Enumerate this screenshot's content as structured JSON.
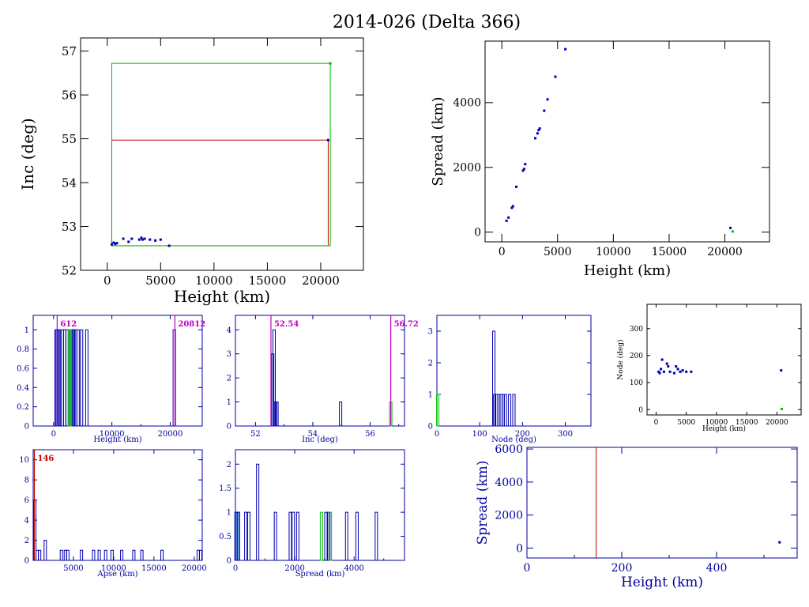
{
  "title": "2014-026 (Delta 366)",
  "colors": {
    "blue": "#0000b0",
    "red": "#c00000",
    "green": "#00c000",
    "magenta": "#c000c0",
    "frame": "#000000",
    "axis_blue": "#0000a0",
    "cyan": "#7fc8e8"
  },
  "chart_data": [
    {
      "id": "inc_vs_height",
      "type": "scatter",
      "xlabel": "Height (km)",
      "ylabel": "Inc (deg)",
      "xlim": [
        -2500,
        24000
      ],
      "ylim": [
        52,
        57.3
      ],
      "xticks": [
        0,
        5000,
        10000,
        15000,
        20000
      ],
      "yticks": [
        52,
        53,
        54,
        55,
        56,
        57
      ],
      "series": [
        {
          "color": "blue",
          "points": [
            [
              420,
              52.59
            ],
            [
              600,
              52.63
            ],
            [
              750,
              52.6
            ],
            [
              900,
              52.62
            ],
            [
              1500,
              52.72
            ],
            [
              2000,
              52.65
            ],
            [
              2300,
              52.72
            ],
            [
              3000,
              52.7
            ],
            [
              3200,
              52.74
            ],
            [
              3300,
              52.7
            ],
            [
              3500,
              52.72
            ],
            [
              4000,
              52.7
            ],
            [
              4500,
              52.68
            ],
            [
              5000,
              52.7
            ],
            [
              5800,
              52.56
            ],
            [
              20700,
              54.97
            ]
          ]
        },
        {
          "color": "green",
          "points": [
            [
              20900,
              56.72
            ]
          ]
        }
      ],
      "boxes": [
        {
          "color": "red",
          "x": [
            420,
            20700
          ],
          "y": [
            52.56,
            54.97
          ]
        },
        {
          "color": "green",
          "x": [
            420,
            20900
          ],
          "y": [
            52.56,
            56.72
          ]
        }
      ]
    },
    {
      "id": "spread_vs_height",
      "type": "scatter",
      "xlabel": "Height (km)",
      "ylabel": "Spread (km)",
      "xlim": [
        -1500,
        24000
      ],
      "ylim": [
        -300,
        5900
      ],
      "xticks": [
        0,
        5000,
        10000,
        15000,
        20000
      ],
      "yticks": [
        0,
        2000,
        4000
      ],
      "series": [
        {
          "color": "blue",
          "points": [
            [
              420,
              350
            ],
            [
              600,
              450
            ],
            [
              900,
              750
            ],
            [
              1000,
              800
            ],
            [
              1300,
              1400
            ],
            [
              1900,
              1900
            ],
            [
              2000,
              1950
            ],
            [
              2100,
              2100
            ],
            [
              3000,
              2900
            ],
            [
              3200,
              3050
            ],
            [
              3300,
              3150
            ],
            [
              3400,
              3200
            ],
            [
              3800,
              3750
            ],
            [
              4100,
              4100
            ],
            [
              4800,
              4800
            ],
            [
              5700,
              5650
            ],
            [
              20500,
              130
            ]
          ]
        },
        {
          "color": "green",
          "points": [
            [
              20700,
              20
            ]
          ]
        }
      ]
    },
    {
      "id": "hist_height",
      "type": "histogram",
      "xlabel": "Height (km)",
      "xlim": [
        -3500,
        25500
      ],
      "ylim": [
        0,
        1.15
      ],
      "xticks": [
        0,
        10000,
        20000
      ],
      "xminor": [
        5000,
        15000
      ],
      "yticks": [
        0,
        0.2,
        0.4,
        0.6,
        0.8,
        1
      ],
      "bars": [
        {
          "color": "blue",
          "x": [
            420,
            600,
            800,
            1000,
            1500,
            1900,
            2300,
            3000,
            3300,
            3500,
            3800,
            4200,
            4800,
            5700,
            20700
          ],
          "h": 1
        },
        {
          "color": "green",
          "x": [
            2700,
            2900
          ],
          "h": 1
        }
      ],
      "markers": [
        {
          "color": "magenta",
          "x": 612,
          "label": "612"
        },
        {
          "color": "magenta",
          "x": 20812,
          "label": "20812"
        }
      ]
    },
    {
      "id": "hist_inc",
      "type": "histogram",
      "xlabel": "Inc (deg)",
      "xlim": [
        51.3,
        57.2
      ],
      "ylim": [
        0,
        4.6
      ],
      "xticks": [
        52,
        54,
        56
      ],
      "xminor": [
        53,
        55,
        57
      ],
      "yticks": [
        0,
        1,
        2,
        3,
        4
      ],
      "bars": [
        {
          "color": "blue",
          "x": [
            52.6,
            52.65,
            52.7,
            52.75,
            54.97
          ],
          "hv": [
            3,
            4,
            1,
            1,
            1
          ]
        },
        {
          "color": "green",
          "x": [
            56.72
          ],
          "hv": [
            1
          ]
        }
      ],
      "markers": [
        {
          "color": "magenta",
          "x": 52.54,
          "label": "52.54"
        },
        {
          "color": "magenta",
          "x": 56.72,
          "label": "56.72"
        }
      ]
    },
    {
      "id": "hist_node",
      "type": "histogram",
      "xlabel": "Node (deg)",
      "xlim": [
        0,
        360
      ],
      "ylim": [
        0,
        3.5
      ],
      "xticks": [
        0,
        100,
        200,
        300
      ],
      "yticks": [
        0,
        1,
        2,
        3
      ],
      "bars": [
        {
          "color": "blue",
          "x": [
            133,
            135,
            140,
            145,
            150,
            155,
            160,
            170,
            180
          ],
          "hv": [
            3,
            1,
            1,
            1,
            1,
            1,
            1,
            1,
            1
          ]
        },
        {
          "color": "green",
          "x": [
            2
          ],
          "hv": [
            1
          ]
        }
      ]
    },
    {
      "id": "node_vs_height",
      "type": "scatter",
      "xlabel": "Height (km)",
      "ylabel": "Node (deg)",
      "xlim": [
        -1500,
        24000
      ],
      "ylim": [
        -20,
        390
      ],
      "xticks": [
        0,
        5000,
        10000,
        15000,
        20000
      ],
      "yticks": [
        0,
        100,
        200,
        300
      ],
      "series": [
        {
          "color": "blue",
          "points": [
            [
              420,
              140
            ],
            [
              600,
              135
            ],
            [
              800,
              150
            ],
            [
              1000,
              185
            ],
            [
              1300,
              140
            ],
            [
              1800,
              170
            ],
            [
              2000,
              160
            ],
            [
              2300,
              140
            ],
            [
              3000,
              135
            ],
            [
              3300,
              160
            ],
            [
              3600,
              150
            ],
            [
              4000,
              140
            ],
            [
              4400,
              145
            ],
            [
              5000,
              140
            ],
            [
              5800,
              140
            ],
            [
              20700,
              145
            ]
          ]
        },
        {
          "color": "green",
          "points": [
            [
              20800,
              2
            ]
          ]
        }
      ]
    },
    {
      "id": "hist_apse",
      "type": "histogram",
      "xlabel": "Apse (km)",
      "xlim": [
        0,
        21000
      ],
      "ylim": [
        0,
        11
      ],
      "xticks": [
        5000,
        10000,
        15000,
        20000
      ],
      "yticks": [
        0,
        2,
        4,
        6,
        8,
        10
      ],
      "bars": [
        {
          "color": "blue",
          "x": [
            200,
            500,
            800,
            1500,
            3500,
            4000,
            4300,
            6000,
            7500,
            8200,
            9000,
            9800,
            11000,
            12500,
            13500,
            16000,
            20500,
            20800
          ],
          "hv": [
            6,
            1,
            1,
            2,
            1,
            1,
            1,
            1,
            1,
            1,
            1,
            1,
            1,
            1,
            1,
            1,
            1,
            1
          ]
        }
      ],
      "markers": [
        {
          "color": "red",
          "x": 146,
          "label": "146"
        }
      ]
    },
    {
      "id": "hist_spread",
      "type": "histogram",
      "xlabel": "Spread (km)",
      "xlim": [
        0,
        5700
      ],
      "ylim": [
        0,
        2.3
      ],
      "xticks": [
        0,
        2000,
        4000
      ],
      "xminor": [
        1000,
        3000,
        5000
      ],
      "yticks": [
        0,
        0.5,
        1,
        1.5,
        2
      ],
      "bars": [
        {
          "color": "blue",
          "x": [
            20,
            100,
            350,
            450,
            750,
            1350,
            1850,
            1950,
            2100,
            3050,
            3150,
            3750,
            4100,
            4750
          ],
          "hv": [
            1,
            1,
            1,
            1,
            2,
            1,
            1,
            1,
            1,
            1,
            1,
            1,
            1,
            1
          ]
        },
        {
          "color": "green",
          "x": [
            2900,
            3200
          ],
          "hv": [
            1,
            1
          ]
        }
      ],
      "filled": {
        "color": "cyan",
        "x": [
          0,
          130
        ],
        "h": 1
      }
    },
    {
      "id": "spread_vs_height_zoom",
      "type": "scatter",
      "xlabel": "Height (km)",
      "ylabel": "Spread (km)",
      "xlim": [
        0,
        570
      ],
      "ylim": [
        -600,
        6100
      ],
      "xticks": [
        0,
        200,
        400
      ],
      "xminor": [
        100,
        300,
        500
      ],
      "yticks": [
        0,
        2000,
        4000,
        6000
      ],
      "series": [
        {
          "color": "blue",
          "points": [
            [
              533,
              350
            ]
          ]
        }
      ],
      "vlines": [
        {
          "color": "red",
          "x": 146
        }
      ]
    }
  ]
}
